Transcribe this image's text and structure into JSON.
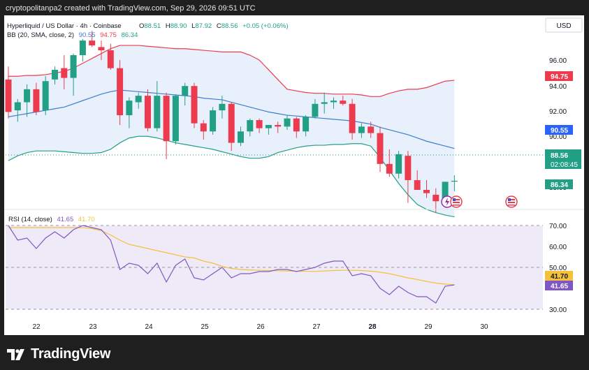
{
  "header": {
    "watermark": "cryptopolitanpa2 created with TradingView.com, Sep 29, 2026 09:51 UTC"
  },
  "legend": {
    "symbol": "Hyperliquid / US Dollar · 4h · Coinbase",
    "o_label": "O",
    "o": "88.51",
    "h_label": "H",
    "h": "88.90",
    "l_label": "L",
    "l": "87.92",
    "c_label": "C",
    "c": "88.56",
    "change": "+0.05 (+0.06%)",
    "bb_label": "BB (20, SMA, close, 2)",
    "bb_mid": "90.55",
    "bb_upper": "94.75",
    "bb_lower": "86.34"
  },
  "currency_button": "USD",
  "price_axis": {
    "ticks": [
      "96.00",
      "94.00",
      "92.00",
      "90.00",
      "88.00"
    ],
    "tags": {
      "upper": "94.75",
      "mid": "90.55",
      "last": "88.56",
      "countdown": "02:08:45",
      "lower": "86.34"
    }
  },
  "rsi": {
    "label": "RSI (14, close)",
    "value": "41.65",
    "ma": "41.70",
    "ticks": [
      "70.00",
      "60.00",
      "50.00",
      "30.00"
    ],
    "tags": {
      "ma": "41.70",
      "value": "41.65"
    }
  },
  "time_axis": {
    "ticks": [
      "22",
      "23",
      "24",
      "25",
      "26",
      "27",
      "28",
      "29",
      "30"
    ]
  },
  "colors": {
    "up": "#22a085",
    "down": "#ec3b4f",
    "bb_upper": "#ec3b4f",
    "bb_mid": "#3f7bd0",
    "bb_lower": "#22a085",
    "rsi": "#7e57c2",
    "rsi_ma": "#f5c13b"
  },
  "icons": [
    "flash-event-icon",
    "us-flag-event-icon"
  ],
  "brand": "TradingView",
  "chart_data": [
    {
      "type": "candlestick",
      "title": "Hyperliquid / US Dollar · 4h · Coinbase",
      "ylim": [
        86.2,
        97.8
      ],
      "candles": [
        {
          "o": 94.8,
          "h": 95.6,
          "l": 92.4,
          "c": 92.8
        },
        {
          "o": 92.9,
          "h": 93.6,
          "l": 92.2,
          "c": 93.4
        },
        {
          "o": 93.4,
          "h": 94.5,
          "l": 92.5,
          "c": 94.2
        },
        {
          "o": 94.2,
          "h": 94.6,
          "l": 92.6,
          "c": 92.8
        },
        {
          "o": 92.9,
          "h": 95.0,
          "l": 92.6,
          "c": 94.7
        },
        {
          "o": 94.8,
          "h": 95.6,
          "l": 94.5,
          "c": 95.4
        },
        {
          "o": 95.5,
          "h": 96.3,
          "l": 94.2,
          "c": 94.9
        },
        {
          "o": 94.9,
          "h": 96.4,
          "l": 93.8,
          "c": 96.3
        },
        {
          "o": 96.3,
          "h": 97.3,
          "l": 95.9,
          "c": 97.2
        },
        {
          "o": 97.2,
          "h": 97.8,
          "l": 96.8,
          "c": 96.9
        },
        {
          "o": 96.8,
          "h": 97.2,
          "l": 96.0,
          "c": 96.6
        },
        {
          "o": 96.6,
          "h": 97.0,
          "l": 95.4,
          "c": 95.5
        },
        {
          "o": 95.5,
          "h": 96.0,
          "l": 92.0,
          "c": 92.6
        },
        {
          "o": 92.6,
          "h": 93.7,
          "l": 91.8,
          "c": 93.5
        },
        {
          "o": 93.4,
          "h": 94.0,
          "l": 93.0,
          "c": 93.8
        },
        {
          "o": 93.8,
          "h": 94.2,
          "l": 91.6,
          "c": 91.8
        },
        {
          "o": 91.8,
          "h": 94.7,
          "l": 91.6,
          "c": 93.8
        },
        {
          "o": 93.8,
          "h": 94.0,
          "l": 89.9,
          "c": 91.0
        },
        {
          "o": 91.0,
          "h": 93.9,
          "l": 90.8,
          "c": 93.8
        },
        {
          "o": 93.8,
          "h": 94.6,
          "l": 93.2,
          "c": 94.4
        },
        {
          "o": 94.4,
          "h": 94.6,
          "l": 91.8,
          "c": 92.1
        },
        {
          "o": 92.1,
          "h": 92.3,
          "l": 91.1,
          "c": 91.6
        },
        {
          "o": 91.6,
          "h": 93.1,
          "l": 91.4,
          "c": 92.9
        },
        {
          "o": 92.9,
          "h": 93.8,
          "l": 92.4,
          "c": 93.3
        },
        {
          "o": 93.3,
          "h": 93.4,
          "l": 90.4,
          "c": 90.9
        },
        {
          "o": 90.9,
          "h": 91.9,
          "l": 90.7,
          "c": 91.6
        },
        {
          "o": 91.6,
          "h": 92.4,
          "l": 91.3,
          "c": 92.3
        },
        {
          "o": 92.3,
          "h": 92.4,
          "l": 91.5,
          "c": 91.8
        },
        {
          "o": 91.8,
          "h": 92.0,
          "l": 91.4,
          "c": 92.0
        },
        {
          "o": 92.0,
          "h": 92.2,
          "l": 91.5,
          "c": 91.9
        },
        {
          "o": 91.9,
          "h": 92.6,
          "l": 91.7,
          "c": 92.4
        },
        {
          "o": 92.4,
          "h": 92.5,
          "l": 91.2,
          "c": 91.6
        },
        {
          "o": 91.6,
          "h": 92.6,
          "l": 91.3,
          "c": 92.5
        },
        {
          "o": 92.5,
          "h": 93.6,
          "l": 92.4,
          "c": 93.3
        },
        {
          "o": 93.3,
          "h": 94.0,
          "l": 92.7,
          "c": 93.4
        },
        {
          "o": 93.4,
          "h": 93.7,
          "l": 93.0,
          "c": 93.5
        },
        {
          "o": 93.5,
          "h": 93.8,
          "l": 93.2,
          "c": 93.3
        },
        {
          "o": 93.3,
          "h": 93.6,
          "l": 91.1,
          "c": 91.5
        },
        {
          "o": 91.5,
          "h": 92.1,
          "l": 91.2,
          "c": 91.9
        },
        {
          "o": 91.9,
          "h": 92.2,
          "l": 91.2,
          "c": 91.5
        },
        {
          "o": 91.5,
          "h": 91.9,
          "l": 89.1,
          "c": 89.6
        },
        {
          "o": 89.6,
          "h": 90.5,
          "l": 88.8,
          "c": 89.0
        },
        {
          "o": 89.0,
          "h": 90.4,
          "l": 88.7,
          "c": 90.2
        },
        {
          "o": 90.1,
          "h": 90.4,
          "l": 87.2,
          "c": 88.6
        },
        {
          "o": 88.6,
          "h": 89.2,
          "l": 88.1,
          "c": 88.0
        },
        {
          "o": 88.0,
          "h": 88.6,
          "l": 87.5,
          "c": 87.8
        },
        {
          "o": 87.7,
          "h": 88.1,
          "l": 86.6,
          "c": 87.3
        },
        {
          "o": 87.3,
          "h": 88.5,
          "l": 87.2,
          "c": 88.5
        },
        {
          "o": 88.51,
          "h": 88.9,
          "l": 87.92,
          "c": 88.56
        }
      ],
      "series": [
        {
          "name": "BB upper",
          "values": [
            95.0,
            95.0,
            95.05,
            95.05,
            95.1,
            95.2,
            95.3,
            95.5,
            95.8,
            96.1,
            96.4,
            96.7,
            96.9,
            96.9,
            96.9,
            96.85,
            96.8,
            96.75,
            96.7,
            96.7,
            96.65,
            96.6,
            96.55,
            96.5,
            96.5,
            96.5,
            96.3,
            96.0,
            95.4,
            94.8,
            94.2,
            94.1,
            94.0,
            93.95,
            93.95,
            93.9,
            93.9,
            93.9,
            93.85,
            93.75,
            93.75,
            93.95,
            94.1,
            94.2,
            94.2,
            94.3,
            94.5,
            94.7,
            94.75
          ]
        },
        {
          "name": "BB basis",
          "values": [
            92.5,
            92.6,
            92.7,
            92.8,
            92.9,
            93.0,
            93.1,
            93.3,
            93.5,
            93.7,
            93.9,
            94.05,
            94.15,
            94.1,
            94.05,
            94.0,
            93.95,
            93.9,
            93.85,
            93.8,
            93.75,
            93.65,
            93.6,
            93.55,
            93.4,
            93.25,
            93.1,
            92.95,
            92.8,
            92.7,
            92.6,
            92.55,
            92.5,
            92.45,
            92.4,
            92.35,
            92.3,
            92.25,
            92.15,
            92.05,
            91.85,
            91.7,
            91.55,
            91.4,
            91.2,
            91.0,
            90.85,
            90.7,
            90.55
          ]
        },
        {
          "name": "BB lower",
          "values": [
            89.8,
            90.1,
            90.3,
            90.4,
            90.4,
            90.4,
            90.35,
            90.3,
            90.25,
            90.25,
            90.3,
            90.5,
            90.9,
            91.2,
            91.3,
            91.3,
            91.2,
            91.05,
            90.9,
            90.8,
            90.7,
            90.6,
            90.5,
            90.35,
            90.2,
            90.05,
            89.95,
            89.95,
            90.05,
            90.3,
            90.45,
            90.6,
            90.7,
            90.75,
            90.75,
            90.8,
            90.8,
            90.85,
            90.85,
            90.7,
            90.0,
            89.2,
            88.4,
            87.7,
            87.1,
            86.8,
            86.6,
            86.45,
            86.34
          ]
        }
      ]
    },
    {
      "type": "line",
      "title": "RSI (14, close)",
      "ylim": [
        30,
        70
      ],
      "series": [
        {
          "name": "RSI",
          "values": [
            70,
            63,
            64,
            59,
            64,
            67,
            64,
            68,
            70,
            69,
            68,
            63,
            49,
            52,
            51,
            47,
            52,
            43,
            51,
            54,
            45,
            44,
            47,
            50,
            45,
            47,
            47,
            48,
            48,
            49,
            49,
            48,
            49,
            50,
            52,
            53,
            53,
            46,
            47,
            46,
            40,
            37,
            41,
            38,
            36,
            36,
            33,
            41,
            41.65
          ]
        },
        {
          "name": "RSI-based MA",
          "values": [
            69,
            69,
            69,
            69,
            69,
            69,
            69,
            69,
            69,
            68.5,
            67.5,
            65.5,
            63,
            61,
            60,
            59,
            58,
            57,
            56,
            55,
            54.5,
            53,
            52,
            50.5,
            49.5,
            49,
            48.8,
            48.6,
            48.5,
            48.4,
            48.3,
            48.2,
            48.1,
            48.1,
            48.3,
            48.5,
            48.6,
            48.6,
            48.5,
            48.2,
            47.7,
            47,
            46,
            45,
            44.2,
            43.3,
            42.5,
            42,
            41.7
          ]
        }
      ]
    }
  ]
}
